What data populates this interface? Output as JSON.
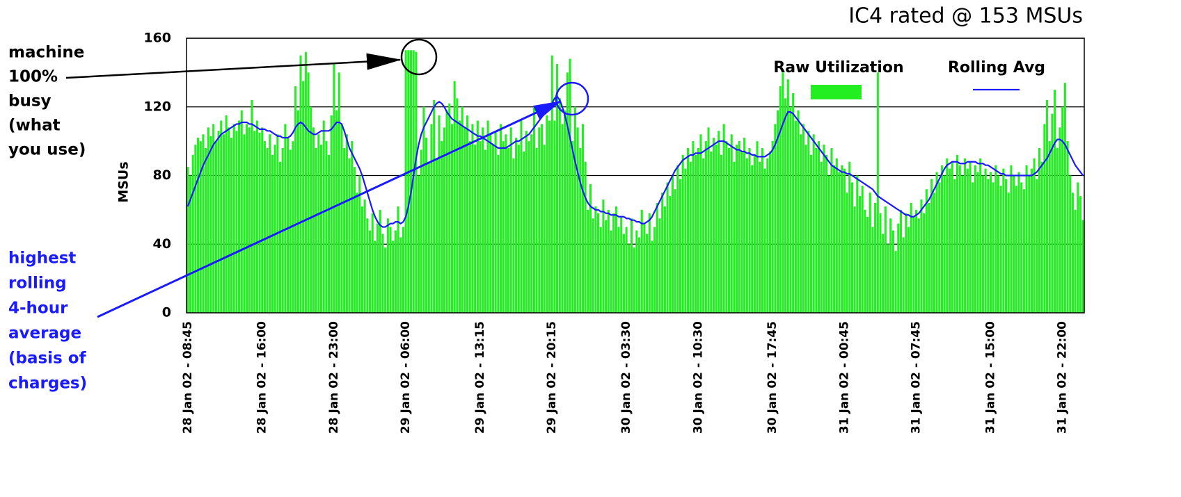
{
  "chart_data": {
    "type": "bar_line",
    "title": "IC4 rated @ 153 MSUs",
    "y_label": "MSUs",
    "ylim": [
      0,
      160
    ],
    "yticks": [
      0,
      40,
      80,
      120,
      160
    ],
    "grid": true,
    "annotations": [
      {
        "color": "#000000",
        "lines": [
          "machine",
          "100%",
          "busy",
          "(what",
          "you use)"
        ]
      },
      {
        "color": "#1a1aff",
        "lines": [
          "highest",
          "rolling",
          "4-hour",
          "average",
          "(basis of",
          "charges)"
        ]
      }
    ],
    "categories": [
      "28 Jan 02 - 08:45",
      null,
      null,
      null,
      null,
      null,
      null,
      null,
      null,
      null,
      null,
      null,
      null,
      null,
      null,
      null,
      null,
      null,
      null,
      null,
      null,
      null,
      null,
      null,
      null,
      null,
      null,
      null,
      null,
      "28 Jan 02 - 16:00",
      null,
      null,
      null,
      null,
      null,
      null,
      null,
      null,
      null,
      null,
      null,
      null,
      null,
      null,
      null,
      null,
      null,
      null,
      null,
      null,
      null,
      null,
      null,
      null,
      null,
      null,
      null,
      "28 Jan 02 - 23:00",
      null,
      null,
      null,
      null,
      null,
      null,
      null,
      null,
      null,
      null,
      null,
      null,
      null,
      null,
      null,
      null,
      null,
      null,
      null,
      null,
      null,
      null,
      null,
      null,
      null,
      null,
      null,
      "29 Jan 02 - 06:00",
      null,
      null,
      null,
      null,
      null,
      null,
      null,
      null,
      null,
      null,
      null,
      null,
      null,
      null,
      null,
      null,
      null,
      null,
      null,
      null,
      null,
      null,
      null,
      null,
      null,
      null,
      null,
      null,
      "29 Jan 02 - 13:15",
      null,
      null,
      null,
      null,
      null,
      null,
      null,
      null,
      null,
      null,
      null,
      null,
      null,
      null,
      null,
      null,
      null,
      null,
      null,
      null,
      null,
      null,
      null,
      null,
      null,
      null,
      null,
      "29 Jan 02 - 20:15",
      null,
      null,
      null,
      null,
      null,
      null,
      null,
      null,
      null,
      null,
      null,
      null,
      null,
      null,
      null,
      null,
      null,
      null,
      null,
      null,
      null,
      null,
      null,
      null,
      null,
      null,
      null,
      null,
      "30 Jan 02 - 03:30",
      null,
      null,
      null,
      null,
      null,
      null,
      null,
      null,
      null,
      null,
      null,
      null,
      null,
      null,
      null,
      null,
      null,
      null,
      null,
      null,
      null,
      null,
      null,
      null,
      null,
      null,
      null,
      "30 Jan 02 - 10:30",
      null,
      null,
      null,
      null,
      null,
      null,
      null,
      null,
      null,
      null,
      null,
      null,
      null,
      null,
      null,
      null,
      null,
      null,
      null,
      null,
      null,
      null,
      null,
      null,
      null,
      null,
      null,
      null,
      "30 Jan 02 - 17:45",
      null,
      null,
      null,
      null,
      null,
      null,
      null,
      null,
      null,
      null,
      null,
      null,
      null,
      null,
      null,
      null,
      null,
      null,
      null,
      null,
      null,
      null,
      null,
      null,
      null,
      null,
      null,
      "31 Jan 02 - 00:45",
      null,
      null,
      null,
      null,
      null,
      null,
      null,
      null,
      null,
      null,
      null,
      null,
      null,
      null,
      null,
      null,
      null,
      null,
      null,
      null,
      null,
      null,
      null,
      null,
      null,
      null,
      null,
      "31 Jan 02 - 07:45",
      null,
      null,
      null,
      null,
      null,
      null,
      null,
      null,
      null,
      null,
      null,
      null,
      null,
      null,
      null,
      null,
      null,
      null,
      null,
      null,
      null,
      null,
      null,
      null,
      null,
      null,
      null,
      null,
      "31 Jan 02 - 15:00",
      null,
      null,
      null,
      null,
      null,
      null,
      null,
      null,
      null,
      null,
      null,
      null,
      null,
      null,
      null,
      null,
      null,
      null,
      null,
      null,
      null,
      null,
      null,
      null,
      null,
      null,
      null,
      "31 Jan 02 - 22:00",
      null,
      null,
      null,
      null,
      null,
      null,
      null,
      null
    ],
    "series": [
      {
        "name": "Raw Utilization",
        "kind": "bar",
        "color": "#22ee22",
        "values": [
          85,
          80,
          92,
          98,
          102,
          100,
          104,
          96,
          108,
          103,
          110,
          100,
          106,
          112,
          104,
          115,
          108,
          102,
          110,
          106,
          112,
          118,
          104,
          110,
          108,
          124,
          106,
          112,
          105,
          108,
          100,
          96,
          104,
          92,
          98,
          104,
          88,
          96,
          110,
          102,
          95,
          100,
          132,
          118,
          150,
          135,
          152,
          140,
          120,
          108,
          96,
          104,
          98,
          112,
          100,
          92,
          115,
          145,
          118,
          140,
          110,
          96,
          104,
          90,
          100,
          85,
          70,
          80,
          62,
          66,
          55,
          48,
          58,
          42,
          52,
          60,
          46,
          38,
          55,
          50,
          42,
          48,
          62,
          44,
          50,
          153,
          153,
          153,
          153,
          152,
          80,
          95,
          120,
          102,
          88,
          110,
          124,
          90,
          115,
          100,
          108,
          118,
          122,
          110,
          135,
          125,
          112,
          120,
          108,
          115,
          100,
          110,
          98,
          112,
          100,
          108,
          95,
          112,
          104,
          98,
          106,
          92,
          110,
          100,
          104,
          96,
          108,
          90,
          102,
          98,
          112,
          94,
          106,
          100,
          104,
          120,
          96,
          108,
          110,
          98,
          115,
          112,
          150,
          112,
          145,
          125,
          110,
          118,
          140,
          148,
          100,
          120,
          108,
          96,
          110,
          88,
          60,
          75,
          55,
          62,
          58,
          50,
          66,
          54,
          60,
          48,
          58,
          62,
          50,
          56,
          46,
          50,
          40,
          55,
          38,
          48,
          44,
          60,
          52,
          46,
          58,
          42,
          50,
          64,
          55,
          70,
          62,
          76,
          68,
          80,
          72,
          86,
          78,
          92,
          84,
          96,
          88,
          100,
          92,
          96,
          104,
          90,
          100,
          108,
          94,
          102,
          98,
          106,
          92,
          110,
          100,
          96,
          104,
          88,
          98,
          100,
          94,
          102,
          90,
          96,
          86,
          92,
          100,
          88,
          96,
          84,
          90,
          94,
          100,
          110,
          118,
          132,
          140,
          125,
          136,
          120,
          128,
          112,
          118,
          104,
          110,
          98,
          106,
          92,
          104,
          96,
          100,
          88,
          98,
          92,
          80,
          96,
          86,
          90,
          82,
          86,
          84,
          70,
          88,
          76,
          62,
          80,
          68,
          74,
          60,
          56,
          70,
          50,
          64,
          140,
          58,
          46,
          62,
          40,
          55,
          48,
          36,
          52,
          60,
          44,
          58,
          50,
          64,
          56,
          60,
          55,
          66,
          58,
          72,
          64,
          78,
          70,
          82,
          76,
          86,
          80,
          90,
          84,
          88,
          78,
          92,
          86,
          80,
          90,
          84,
          88,
          76,
          86,
          82,
          90,
          80,
          84,
          78,
          82,
          76,
          86,
          80,
          74,
          84,
          78,
          70,
          86,
          80,
          74,
          82,
          76,
          72,
          86,
          80,
          84,
          90,
          78,
          96,
          88,
          110,
          124,
          100,
          116,
          130,
          96,
          108,
          120,
          134,
          100,
          80,
          70,
          60,
          76,
          68,
          54
        ]
      },
      {
        "name": "Rolling Avg",
        "kind": "line",
        "color": "#1a1aff",
        "values": [
          62,
          66,
          70,
          74,
          78,
          82,
          86,
          89,
          92,
          95,
          98,
          100,
          102,
          104,
          105,
          106,
          107,
          108,
          109,
          110,
          110,
          111,
          111,
          111,
          110,
          110,
          109,
          108,
          107,
          107,
          107,
          106,
          106,
          105,
          104,
          103,
          103,
          102,
          102,
          102,
          103,
          105,
          108,
          110,
          111,
          110,
          108,
          106,
          105,
          104,
          104,
          105,
          106,
          106,
          106,
          106,
          107,
          109,
          111,
          111,
          110,
          106,
          101,
          96,
          93,
          90,
          87,
          84,
          80,
          75,
          70,
          65,
          60,
          56,
          53,
          51,
          50,
          50,
          51,
          52,
          52,
          53,
          53,
          52,
          53,
          56,
          62,
          70,
          80,
          90,
          98,
          104,
          108,
          111,
          114,
          117,
          120,
          122,
          123,
          122,
          120,
          117,
          115,
          113,
          112,
          111,
          110,
          109,
          108,
          107,
          106,
          105,
          104,
          103,
          103,
          102,
          101,
          100,
          99,
          98,
          97,
          96,
          96,
          96,
          96,
          97,
          98,
          99,
          100,
          100,
          101,
          102,
          103,
          104,
          106,
          108,
          110,
          112,
          114,
          116,
          118,
          120,
          122,
          125,
          126,
          124,
          120,
          115,
          109,
          102,
          95,
          88,
          82,
          76,
          71,
          67,
          64,
          62,
          61,
          60,
          60,
          59,
          59,
          58,
          58,
          57,
          57,
          57,
          56,
          56,
          56,
          55,
          55,
          54,
          54,
          53,
          53,
          52,
          52,
          53,
          54,
          56,
          59,
          62,
          65,
          68,
          71,
          74,
          77,
          80,
          83,
          85,
          87,
          89,
          90,
          91,
          92,
          92,
          93,
          93,
          93,
          94,
          95,
          96,
          97,
          98,
          99,
          100,
          100,
          100,
          99,
          98,
          97,
          96,
          95,
          95,
          94,
          94,
          93,
          93,
          92,
          92,
          91,
          91,
          91,
          91,
          92,
          93,
          95,
          98,
          102,
          106,
          110,
          114,
          117,
          117,
          116,
          114,
          112,
          110,
          108,
          106,
          104,
          102,
          100,
          98,
          96,
          94,
          92,
          90,
          88,
          86,
          85,
          84,
          83,
          82,
          82,
          81,
          81,
          80,
          79,
          78,
          77,
          76,
          75,
          74,
          73,
          72,
          70,
          68,
          67,
          66,
          65,
          64,
          63,
          62,
          61,
          60,
          59,
          58,
          57,
          57,
          56,
          56,
          57,
          58,
          60,
          62,
          64,
          66,
          69,
          72,
          75,
          78,
          81,
          84,
          86,
          87,
          88,
          88,
          88,
          87,
          87,
          87,
          88,
          88,
          88,
          88,
          87,
          87,
          87,
          86,
          86,
          85,
          84,
          83,
          82,
          81,
          81,
          80,
          80,
          80,
          80,
          80,
          80,
          80,
          80,
          80,
          80,
          80,
          81,
          82,
          84,
          86,
          88,
          90,
          93,
          96,
          99,
          101,
          101,
          100,
          98,
          95,
          92,
          89,
          86,
          84,
          82,
          80
        ]
      }
    ]
  }
}
